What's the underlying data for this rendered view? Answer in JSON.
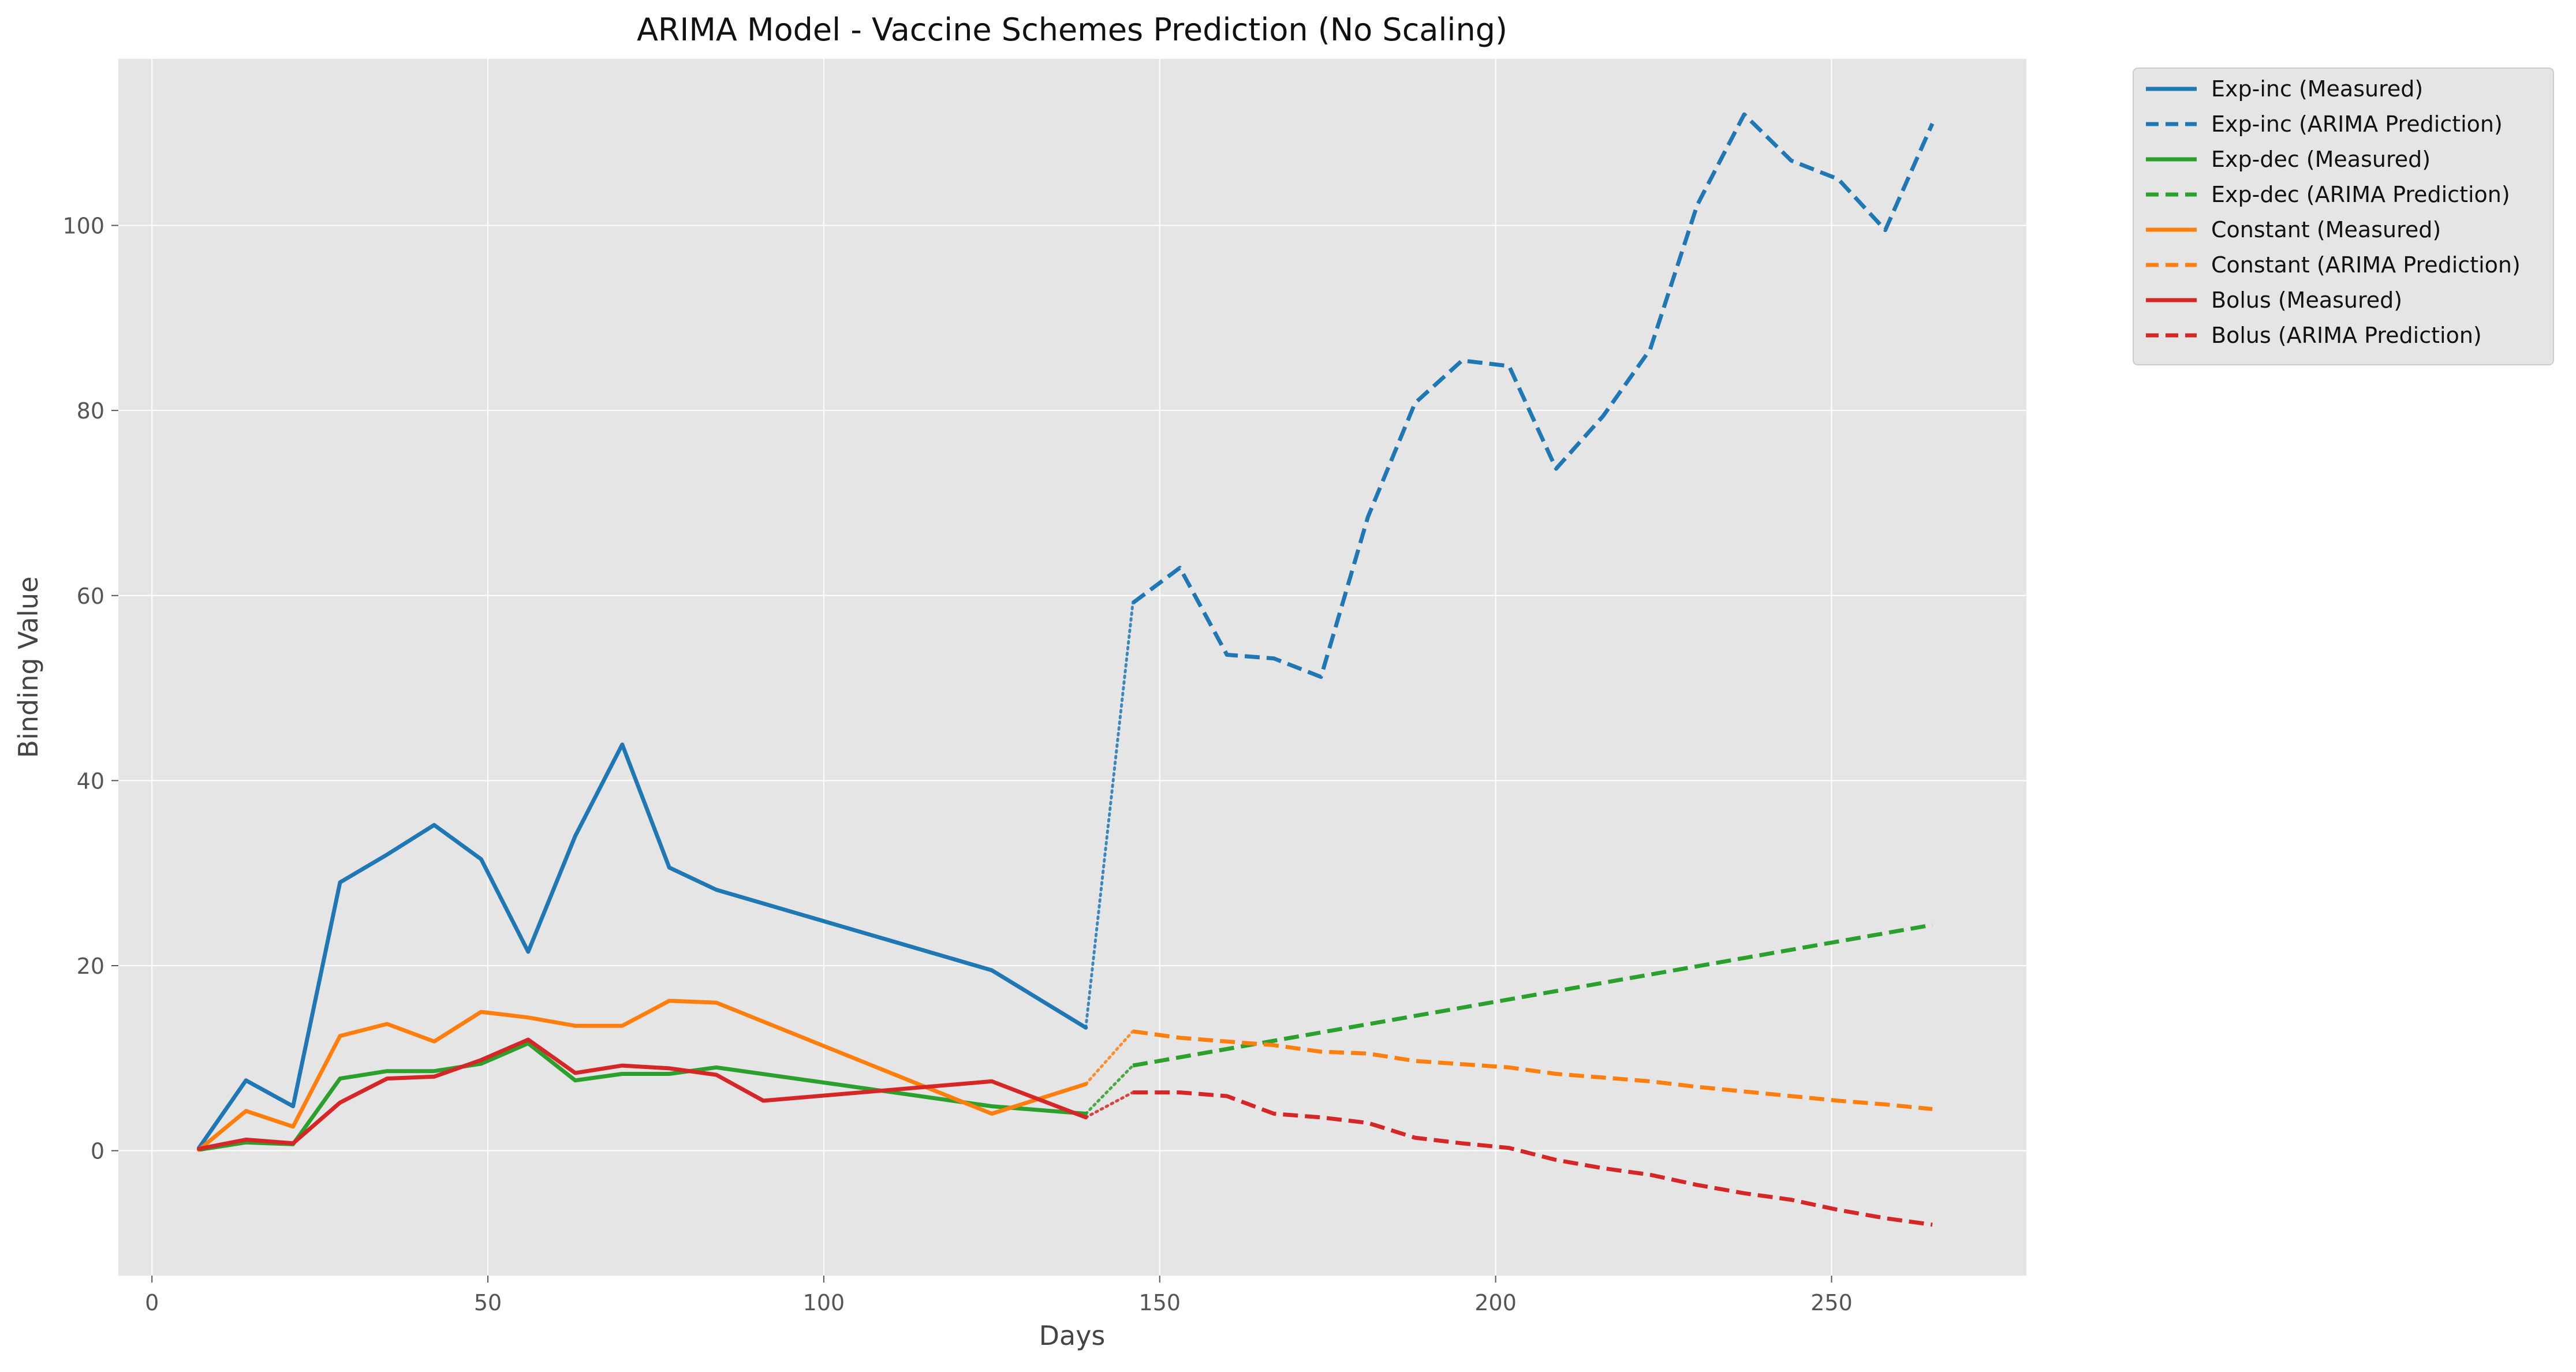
{
  "chart_data": {
    "type": "line",
    "title": "ARIMA Model - Vaccine Schemes Prediction (No Scaling)",
    "xlabel": "Days",
    "ylabel": "Binding Value",
    "xlim": [
      -5,
      279
    ],
    "ylim": [
      -13.5,
      118
    ],
    "xticks": [
      0,
      50,
      100,
      150,
      200,
      250
    ],
    "yticks": [
      0,
      20,
      40,
      60,
      80,
      100
    ],
    "grid": true,
    "legend_position": "outside upper right",
    "plot_background": "#e5e5e5",
    "series": [
      {
        "name": "Exp-inc (Measured)",
        "color": "#1f77b4",
        "style": "solid",
        "x": [
          7,
          14,
          21,
          28,
          35,
          42,
          49,
          56,
          63,
          70,
          77,
          84,
          125,
          139
        ],
        "y": [
          0.3,
          7.6,
          4.8,
          29,
          32,
          35.2,
          31.5,
          21.5,
          34,
          43.9,
          30.6,
          28.2,
          19.5,
          13.3
        ]
      },
      {
        "name": "Exp-inc (ARIMA Prediction)",
        "color": "#1f77b4",
        "style": "dashed",
        "x": [
          146,
          153,
          160,
          167,
          174,
          181,
          188,
          195,
          202,
          209,
          216,
          223,
          230,
          237,
          244,
          251,
          258,
          265
        ],
        "y": [
          59.2,
          63,
          53.6,
          53.2,
          51.2,
          68.5,
          80.8,
          85.4,
          84.8,
          73.7,
          79.4,
          86.6,
          102.2,
          112,
          107,
          105,
          99.5,
          111
        ]
      },
      {
        "name": "Exp-dec (Measured)",
        "color": "#2ca02c",
        "style": "solid",
        "x": [
          7,
          14,
          21,
          28,
          35,
          42,
          49,
          56,
          63,
          70,
          77,
          84,
          125,
          139
        ],
        "y": [
          0.1,
          0.9,
          0.7,
          7.8,
          8.6,
          8.6,
          9.4,
          11.6,
          7.6,
          8.3,
          8.3,
          9,
          4.8,
          4
        ]
      },
      {
        "name": "Exp-dec (ARIMA Prediction)",
        "color": "#2ca02c",
        "style": "dashed",
        "x": [
          146,
          265
        ],
        "y": [
          9.2,
          24.4
        ]
      },
      {
        "name": "Constant (Measured)",
        "color": "#ff7f0e",
        "style": "solid",
        "x": [
          7,
          14,
          21,
          28,
          35,
          42,
          49,
          56,
          63,
          70,
          77,
          84,
          125,
          139
        ],
        "y": [
          0.1,
          4.3,
          2.6,
          12.4,
          13.7,
          11.8,
          15,
          14.4,
          13.5,
          13.5,
          16.2,
          16,
          4,
          7.2
        ]
      },
      {
        "name": "Constant (ARIMA Prediction)",
        "color": "#ff7f0e",
        "style": "dashed",
        "x": [
          146,
          153,
          167,
          174,
          181,
          188,
          202,
          209,
          216,
          223,
          230,
          237,
          244,
          251,
          258,
          265
        ],
        "y": [
          12.9,
          12.2,
          11.4,
          10.7,
          10.5,
          9.7,
          9,
          8.3,
          7.9,
          7.5,
          6.9,
          6.4,
          5.9,
          5.4,
          5,
          4.5
        ]
      },
      {
        "name": "Bolus (Measured)",
        "color": "#d62728",
        "style": "solid",
        "x": [
          7,
          14,
          21,
          28,
          35,
          42,
          49,
          56,
          63,
          70,
          77,
          84,
          91,
          125,
          139
        ],
        "y": [
          0.2,
          1.2,
          0.8,
          5.2,
          7.8,
          8,
          9.8,
          12,
          8.4,
          9.2,
          8.9,
          8.2,
          5.4,
          7.5,
          3.6
        ]
      },
      {
        "name": "Bolus (ARIMA Prediction)",
        "color": "#d62728",
        "style": "dashed",
        "x": [
          146,
          153,
          160,
          167,
          174,
          181,
          188,
          195,
          202,
          209,
          216,
          223,
          230,
          237,
          244,
          251,
          258,
          265
        ],
        "y": [
          6.3,
          6.3,
          5.9,
          4,
          3.6,
          3,
          1.4,
          0.8,
          0.3,
          -1,
          -1.9,
          -2.6,
          -3.7,
          -4.6,
          -5.3,
          -6.4,
          -7.3,
          -8
        ]
      }
    ]
  }
}
